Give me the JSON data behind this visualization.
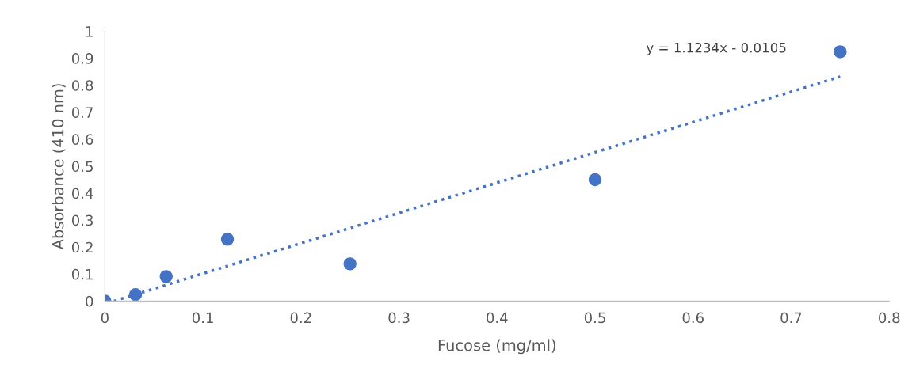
{
  "chart_data": {
    "type": "scatter",
    "xlabel": "Fucose (mg/ml)",
    "ylabel": "Absorbance (410 nm)",
    "annotations": [
      "y = 1.1234x - 0.0105"
    ],
    "xlim": [
      0,
      0.8
    ],
    "xticks": [
      0,
      0.1,
      0.2,
      0.3,
      0.4,
      0.5,
      0.6,
      0.7,
      0.8
    ],
    "ylim": [
      0,
      1
    ],
    "yticks": [
      0,
      0.1,
      0.2,
      0.3,
      0.4,
      0.5,
      0.6,
      0.7,
      0.8,
      0.9,
      1
    ],
    "grid": false,
    "legend": false,
    "marker": "circle",
    "series": [
      {
        "color": "#4472c4",
        "x": [
          0,
          0.03125,
          0.0625,
          0.125,
          0.25,
          0.5,
          0.75
        ],
        "values": [
          0,
          0.024,
          0.091,
          0.229,
          0.138,
          0.45,
          0.924
        ]
      },
      {
        "type": "line",
        "color": "#4472c4",
        "line_style": "dotted",
        "marker": "none",
        "x": [
          0.0093,
          0.75
        ],
        "values": [
          0,
          0.832
        ]
      }
    ]
  }
}
